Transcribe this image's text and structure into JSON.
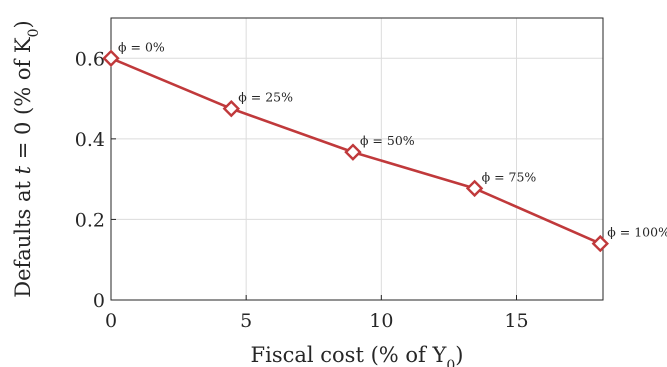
{
  "chart_data": {
    "type": "line",
    "xlabel": "Fiscal cost (% of Y",
    "xlabel_subscript": "0",
    "xlabel_suffix": ")",
    "ylabel_prefix": "Defaults at ",
    "ylabel_var": "t",
    "ylabel_mid": " = 0 (% of K",
    "ylabel_subscript": "0",
    "ylabel_suffix": ")",
    "xlim": [
      0,
      18.2
    ],
    "ylim": [
      0,
      0.7
    ],
    "xticks": [
      0,
      5,
      10,
      15
    ],
    "xtick_labels": [
      "0",
      "5",
      "10",
      "15"
    ],
    "yticks": [
      0,
      0.2,
      0.4,
      0.6
    ],
    "ytick_labels": [
      "0",
      "0.2",
      "0.4",
      "0.6"
    ],
    "grid": true,
    "color": "#c0393b",
    "series": [
      {
        "x": [
          0,
          4.45,
          8.95,
          13.45,
          18.1
        ],
        "y": [
          0.6,
          0.475,
          0.367,
          0.277,
          0.14
        ],
        "labels": [
          "ϕ = 0%",
          "ϕ = 25%",
          "ϕ = 50%",
          "ϕ = 75%",
          "ϕ = 100%"
        ]
      }
    ]
  }
}
